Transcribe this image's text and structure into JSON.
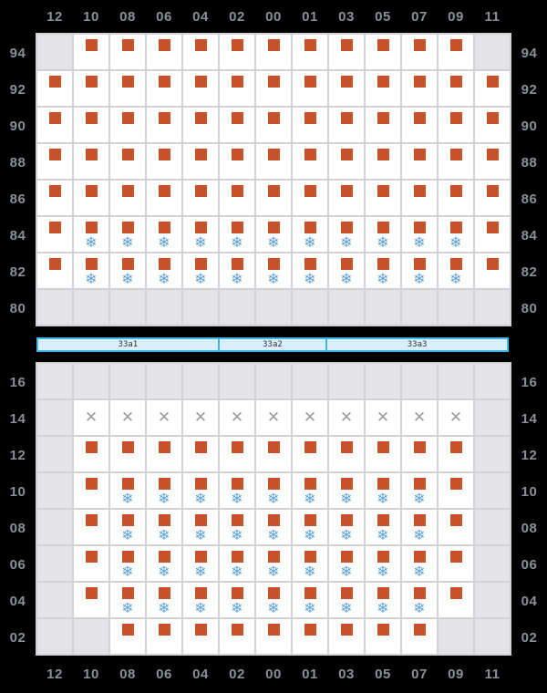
{
  "colors": {
    "background": "#000000",
    "cell_available": "#ffffff",
    "cell_empty": "#e4e4e6",
    "grid_line": "#d2d2d6",
    "seat_square": "#c8512a",
    "ac_icon": "#5b9fd6",
    "blocked_icon": "#9a9a9e",
    "axis_label": "#8b8f97",
    "section_fill": "#d9effa",
    "section_border": "#3fb6e9",
    "section_label": "#333333"
  },
  "icons": {
    "seat": "seat-square-icon",
    "ac": "❄",
    "blocked": "✕"
  },
  "cell_states": {
    "E": "empty",
    "S": "seat-available",
    "A": "seat-available-ac",
    "X": "seat-blocked"
  },
  "columns": [
    "12",
    "10",
    "08",
    "06",
    "04",
    "02",
    "00",
    "01",
    "03",
    "05",
    "07",
    "09",
    "11"
  ],
  "grids": [
    {
      "name": "upper",
      "rows": [
        {
          "label": "94",
          "cells": "ESSSSSSSSSSSE"
        },
        {
          "label": "92",
          "cells": "SSSSSSSSSSSSS"
        },
        {
          "label": "90",
          "cells": "SSSSSSSSSSSSS"
        },
        {
          "label": "88",
          "cells": "SSSSSSSSSSSSS"
        },
        {
          "label": "86",
          "cells": "SSSSSSSSSSSSS"
        },
        {
          "label": "84",
          "cells": "SAAAAAAAAAAAS"
        },
        {
          "label": "82",
          "cells": "SAAAAAAAAAAAS"
        },
        {
          "label": "80",
          "cells": "EEEEEEEEEEEEE"
        }
      ]
    },
    {
      "name": "lower",
      "rows": [
        {
          "label": "16",
          "cells": "EEEEEEEEEEEEE"
        },
        {
          "label": "14",
          "cells": "EXXXXXXXXXXXE"
        },
        {
          "label": "12",
          "cells": "ESSSSSSSSSSSE"
        },
        {
          "label": "10",
          "cells": "ESAAAAAAAAASE"
        },
        {
          "label": "08",
          "cells": "ESAAAAAAAAASE"
        },
        {
          "label": "06",
          "cells": "ESAAAAAAAAASE"
        },
        {
          "label": "04",
          "cells": "ESAAAAAAAAASE"
        },
        {
          "label": "02",
          "cells": "EESSSSSSSSSEE"
        }
      ]
    }
  ],
  "sections": [
    {
      "label": "33a1",
      "cols": 5
    },
    {
      "label": "33a2",
      "cols": 3
    },
    {
      "label": "33a3",
      "cols": 5
    }
  ]
}
